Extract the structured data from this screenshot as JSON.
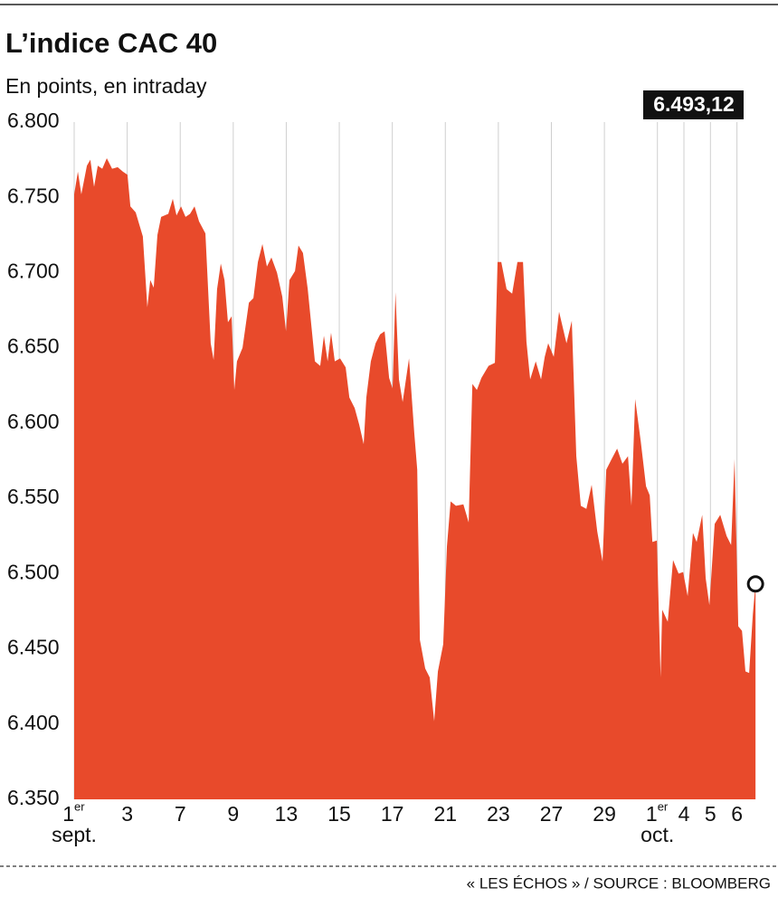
{
  "chart_data": {
    "type": "area",
    "title": "L’indice CAC 40",
    "subtitle": "En points, en intraday",
    "source": "« LES ÉCHOS » / SOURCE : BLOOMBERG",
    "color": "#e84a2b",
    "grid": true,
    "last_value_label": "6.493,12",
    "xlim": [
      0,
      25.9
    ],
    "ylim": [
      6350,
      6800
    ],
    "yticks": [
      {
        "value": 6350,
        "label": "6.350"
      },
      {
        "value": 6400,
        "label": "6.400"
      },
      {
        "value": 6450,
        "label": "6.450"
      },
      {
        "value": 6500,
        "label": "6.500"
      },
      {
        "value": 6550,
        "label": "6.550"
      },
      {
        "value": 6600,
        "label": "6.600"
      },
      {
        "value": 6650,
        "label": "6.650"
      },
      {
        "value": 6700,
        "label": "6.700"
      },
      {
        "value": 6750,
        "label": "6.750"
      },
      {
        "value": 6800,
        "label": "6.800"
      }
    ],
    "xticks": [
      {
        "value": 0,
        "label": "1",
        "sup": "er",
        "month": "sept."
      },
      {
        "value": 2,
        "label": "3"
      },
      {
        "value": 4,
        "label": "7"
      },
      {
        "value": 6,
        "label": "9"
      },
      {
        "value": 8,
        "label": "13"
      },
      {
        "value": 10,
        "label": "15"
      },
      {
        "value": 12,
        "label": "17"
      },
      {
        "value": 14,
        "label": "21"
      },
      {
        "value": 16,
        "label": "23"
      },
      {
        "value": 18,
        "label": "27"
      },
      {
        "value": 20,
        "label": "29"
      },
      {
        "value": 22,
        "label": "1",
        "sup": "er",
        "month": "oct."
      },
      {
        "value": 23,
        "label": "4"
      },
      {
        "value": 24,
        "label": "5"
      },
      {
        "value": 25,
        "label": "6"
      }
    ],
    "x": [
      0,
      0.14,
      0.27,
      0.48,
      0.61,
      0.75,
      0.89,
      1.06,
      1.23,
      1.43,
      1.64,
      1.84,
      2.01,
      2.12,
      2.32,
      2.59,
      2.76,
      2.87,
      3.0,
      3.14,
      3.28,
      3.55,
      3.72,
      3.86,
      4.03,
      4.2,
      4.37,
      4.54,
      4.71,
      4.95,
      5.15,
      5.26,
      5.39,
      5.53,
      5.67,
      5.8,
      5.94,
      6.04,
      6.14,
      6.35,
      6.59,
      6.76,
      6.93,
      7.1,
      7.27,
      7.44,
      7.65,
      7.85,
      7.99,
      8.12,
      8.33,
      8.46,
      8.63,
      8.81,
      9.08,
      9.28,
      9.42,
      9.56,
      9.69,
      9.83,
      10.03,
      10.24,
      10.38,
      10.58,
      10.75,
      10.92,
      11.02,
      11.19,
      11.37,
      11.54,
      11.71,
      11.88,
      12.01,
      12.12,
      12.25,
      12.39,
      12.63,
      12.83,
      12.94,
      13.04,
      13.24,
      13.41,
      13.58,
      13.72,
      13.92,
      14.06,
      14.2,
      14.4,
      14.68,
      14.88,
      15.02,
      15.19,
      15.36,
      15.63,
      15.87,
      15.97,
      16.11,
      16.31,
      16.52,
      16.72,
      16.93,
      17.06,
      17.2,
      17.41,
      17.61,
      17.75,
      17.88,
      18.09,
      18.29,
      18.57,
      18.77,
      18.94,
      19.11,
      19.32,
      19.52,
      19.73,
      19.93,
      20.07,
      20.27,
      20.48,
      20.68,
      20.89,
      21.02,
      21.16,
      21.37,
      21.57,
      21.71,
      21.81,
      21.98,
      22.12,
      22.18,
      22.39,
      22.59,
      22.8,
      22.97,
      23.14,
      23.34,
      23.48,
      23.69,
      23.82,
      23.96,
      24.16,
      24.37,
      24.61,
      24.78,
      24.91,
      25.05,
      25.19,
      25.32,
      25.46,
      25.6,
      25.7
    ],
    "values": [
      6752,
      6767,
      6752,
      6771,
      6775,
      6757,
      6771,
      6769,
      6776,
      6769,
      6770,
      6767,
      6765,
      6744,
      6740,
      6724,
      6677,
      6695,
      6690,
      6725,
      6737,
      6739,
      6749,
      6738,
      6744,
      6737,
      6739,
      6744,
      6734,
      6726,
      6653,
      6642,
      6689,
      6706,
      6695,
      6667,
      6671,
      6622,
      6641,
      6650,
      6680,
      6683,
      6707,
      6719,
      6704,
      6710,
      6700,
      6684,
      6661,
      6695,
      6701,
      6718,
      6713,
      6689,
      6641,
      6638,
      6658,
      6641,
      6660,
      6641,
      6643,
      6637,
      6617,
      6610,
      6599,
      6586,
      6617,
      6641,
      6653,
      6659,
      6661,
      6630,
      6623,
      6687,
      6629,
      6614,
      6643,
      6593,
      6569,
      6456,
      6437,
      6431,
      6402,
      6435,
      6453,
      6518,
      6548,
      6545,
      6546,
      6534,
      6626,
      6622,
      6630,
      6638,
      6640,
      6707,
      6707,
      6689,
      6686,
      6707,
      6707,
      6654,
      6629,
      6641,
      6629,
      6644,
      6653,
      6644,
      6674,
      6653,
      6668,
      6578,
      6545,
      6543,
      6559,
      6528,
      6508,
      6569,
      6576,
      6583,
      6573,
      6578,
      6545,
      6616,
      6588,
      6558,
      6552,
      6521,
      6522,
      6431,
      6476,
      6468,
      6509,
      6500,
      6501,
      6485,
      6527,
      6521,
      6539,
      6497,
      6479,
      6533,
      6539,
      6525,
      6519,
      6576,
      6465,
      6462,
      6435,
      6434,
      6473,
      6493.12
    ]
  }
}
